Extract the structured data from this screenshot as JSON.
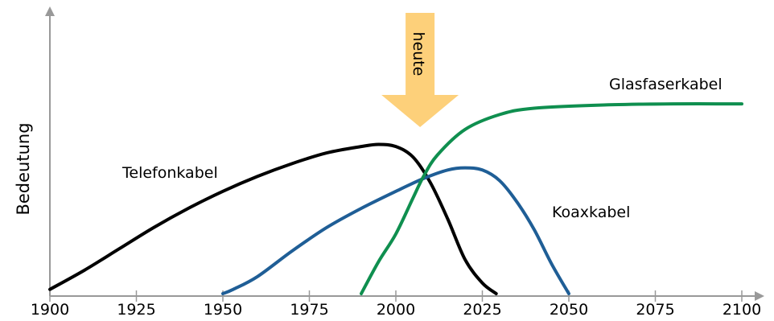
{
  "chart_data": {
    "type": "line",
    "xlabel": "",
    "ylabel": "Bedeutung",
    "xlim": [
      1900,
      2100
    ],
    "ylim": [
      0,
      100
    ],
    "x_ticks": [
      1900,
      1925,
      1950,
      1975,
      2000,
      2025,
      2050,
      2075,
      2100
    ],
    "grid": false,
    "colors": {
      "Telefonkabel": "#000000",
      "Koaxkabel": "#1f5e96",
      "Glasfaserkabel": "#0f8f4f",
      "arrow": "#fdd07a",
      "axis": "#999999"
    },
    "series": [
      {
        "name": "Telefonkabel",
        "x": [
          1900,
          1910,
          1920,
          1930,
          1940,
          1950,
          1960,
          1970,
          1980,
          1990,
          1995,
          2000,
          2005,
          2010,
          2015,
          2020,
          2025,
          2029
        ],
        "y": [
          2,
          11,
          21,
          31,
          40,
          48,
          55,
          61,
          66,
          69,
          70,
          69,
          64,
          52,
          35,
          16,
          5,
          0
        ]
      },
      {
        "name": "Koaxkabel",
        "x": [
          1950,
          1953,
          1960,
          1970,
          1980,
          1990,
          2000,
          2008,
          2015,
          2020,
          2025,
          2030,
          2035,
          2040,
          2045,
          2050
        ],
        "y": [
          0,
          2,
          8,
          20,
          31,
          40,
          48,
          54,
          58,
          59,
          58,
          53,
          43,
          30,
          14,
          0
        ]
      },
      {
        "name": "Glasfaserkabel",
        "x": [
          1990,
          1995,
          2000,
          2005,
          2008,
          2012,
          2020,
          2030,
          2040,
          2060,
          2080,
          2100
        ],
        "y": [
          0,
          15,
          28,
          45,
          55,
          65,
          77,
          84,
          87,
          88.5,
          89,
          89
        ]
      }
    ],
    "annotations": [
      {
        "text": "heute",
        "x": 2007
      }
    ]
  }
}
